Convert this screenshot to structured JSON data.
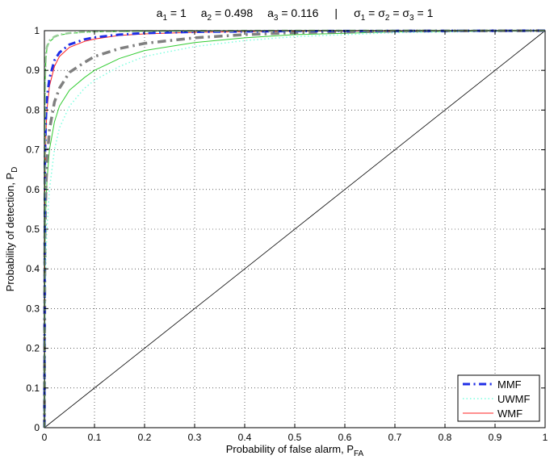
{
  "chart_data": {
    "type": "line",
    "title": {
      "a1": "a",
      "a1_sub": "1",
      "a1_val": " = 1",
      "a2": "a",
      "a2_sub": "2",
      "a2_val": " = 0.498",
      "a3": "a",
      "a3_sub": "3",
      "a3_val": " = 0.116",
      "sep": "|",
      "s1": "σ",
      "s1_sub": "1",
      "eq1": " = ",
      "s2": "σ",
      "s2_sub": "2",
      "eq2": " = ",
      "s3": "σ",
      "s3_sub": "3",
      "s_val": " = 1"
    },
    "xlabel": {
      "text": "Probability of false alarm, P",
      "sub": "FA"
    },
    "ylabel": {
      "text": "Probability of detection, P",
      "sub": "D"
    },
    "xlim": [
      0,
      1
    ],
    "ylim": [
      0,
      1
    ],
    "xticks": [
      "0",
      "0.1",
      "0.2",
      "0.3",
      "0.4",
      "0.5",
      "0.6",
      "0.7",
      "0.8",
      "0.9",
      "1"
    ],
    "yticks": [
      "0",
      "0.1",
      "0.2",
      "0.3",
      "0.4",
      "0.5",
      "0.6",
      "0.7",
      "0.8",
      "0.9",
      "1"
    ],
    "grid": true,
    "legend_position": "bottom-right",
    "series": [
      {
        "name": "MMF",
        "color": "#1f2ee6",
        "style": "dashdot",
        "width": 3,
        "legend": true,
        "x": [
          0,
          0.001,
          0.003,
          0.005,
          0.01,
          0.02,
          0.03,
          0.05,
          0.08,
          0.1,
          0.15,
          0.2,
          0.3,
          0.5,
          1
        ],
        "y": [
          0,
          0.68,
          0.78,
          0.83,
          0.88,
          0.925,
          0.945,
          0.965,
          0.978,
          0.983,
          0.99,
          0.994,
          0.997,
          0.999,
          1
        ]
      },
      {
        "name": "UWMF",
        "color": "#7fffe0",
        "style": "dotted",
        "width": 1.5,
        "legend": true,
        "x": [
          0,
          0.001,
          0.003,
          0.005,
          0.01,
          0.02,
          0.03,
          0.05,
          0.08,
          0.1,
          0.15,
          0.2,
          0.3,
          0.4,
          0.5,
          0.6,
          0.7,
          1
        ],
        "y": [
          0,
          0.3,
          0.42,
          0.5,
          0.6,
          0.7,
          0.755,
          0.81,
          0.855,
          0.875,
          0.91,
          0.935,
          0.96,
          0.975,
          0.985,
          0.99,
          0.995,
          1
        ]
      },
      {
        "name": "WMF",
        "color": "#ff2020",
        "style": "solid",
        "width": 1,
        "legend": true,
        "x": [
          0,
          0.001,
          0.003,
          0.005,
          0.01,
          0.02,
          0.03,
          0.05,
          0.08,
          0.1,
          0.15,
          0.2,
          0.3,
          0.5,
          1
        ],
        "y": [
          0,
          0.63,
          0.74,
          0.8,
          0.86,
          0.91,
          0.935,
          0.958,
          0.973,
          0.979,
          0.988,
          0.992,
          0.996,
          0.999,
          1
        ]
      },
      {
        "name": "",
        "color": "#808080",
        "style": "dashdot",
        "width": 3.5,
        "legend": false,
        "x": [
          0,
          0.001,
          0.003,
          0.005,
          0.01,
          0.02,
          0.03,
          0.05,
          0.08,
          0.1,
          0.15,
          0.2,
          0.3,
          0.4,
          0.5,
          0.7,
          1
        ],
        "y": [
          0,
          0.48,
          0.6,
          0.67,
          0.75,
          0.82,
          0.855,
          0.895,
          0.92,
          0.935,
          0.955,
          0.968,
          0.982,
          0.99,
          0.995,
          0.999,
          1
        ]
      },
      {
        "name": "",
        "color": "#33cc33",
        "style": "solid",
        "width": 1,
        "legend": false,
        "x": [
          0,
          0.001,
          0.003,
          0.005,
          0.01,
          0.02,
          0.03,
          0.05,
          0.08,
          0.1,
          0.15,
          0.2,
          0.3,
          0.4,
          0.5,
          0.7,
          1
        ],
        "y": [
          0,
          0.45,
          0.56,
          0.62,
          0.7,
          0.77,
          0.81,
          0.85,
          0.882,
          0.9,
          0.93,
          0.95,
          0.97,
          0.982,
          0.99,
          0.997,
          1
        ]
      },
      {
        "name": "",
        "color": "#99cc99",
        "style": "dashdot",
        "width": 2.5,
        "legend": false,
        "x": [
          0,
          0.001,
          0.003,
          0.005,
          0.01,
          0.02,
          0.03,
          0.05,
          0.08,
          0.1,
          0.2,
          0.5,
          1
        ],
        "y": [
          0,
          0.88,
          0.94,
          0.96,
          0.975,
          0.985,
          0.99,
          0.994,
          0.997,
          0.998,
          0.999,
          1,
          1
        ]
      },
      {
        "name": "",
        "color": "#33cc33",
        "style": "dashed",
        "width": 1.2,
        "legend": false,
        "x": [
          0,
          0.001,
          0.003,
          0.005,
          0.01,
          0.02,
          0.03,
          0.05,
          0.08,
          0.1,
          0.2,
          0.5,
          1
        ],
        "y": [
          0,
          0.86,
          0.93,
          0.955,
          0.972,
          0.983,
          0.989,
          0.993,
          0.996,
          0.997,
          0.999,
          1,
          1
        ]
      },
      {
        "name": "",
        "color": "#000000",
        "style": "solid",
        "width": 0.8,
        "legend": false,
        "x": [
          0,
          1
        ],
        "y": [
          0,
          1
        ]
      }
    ]
  }
}
